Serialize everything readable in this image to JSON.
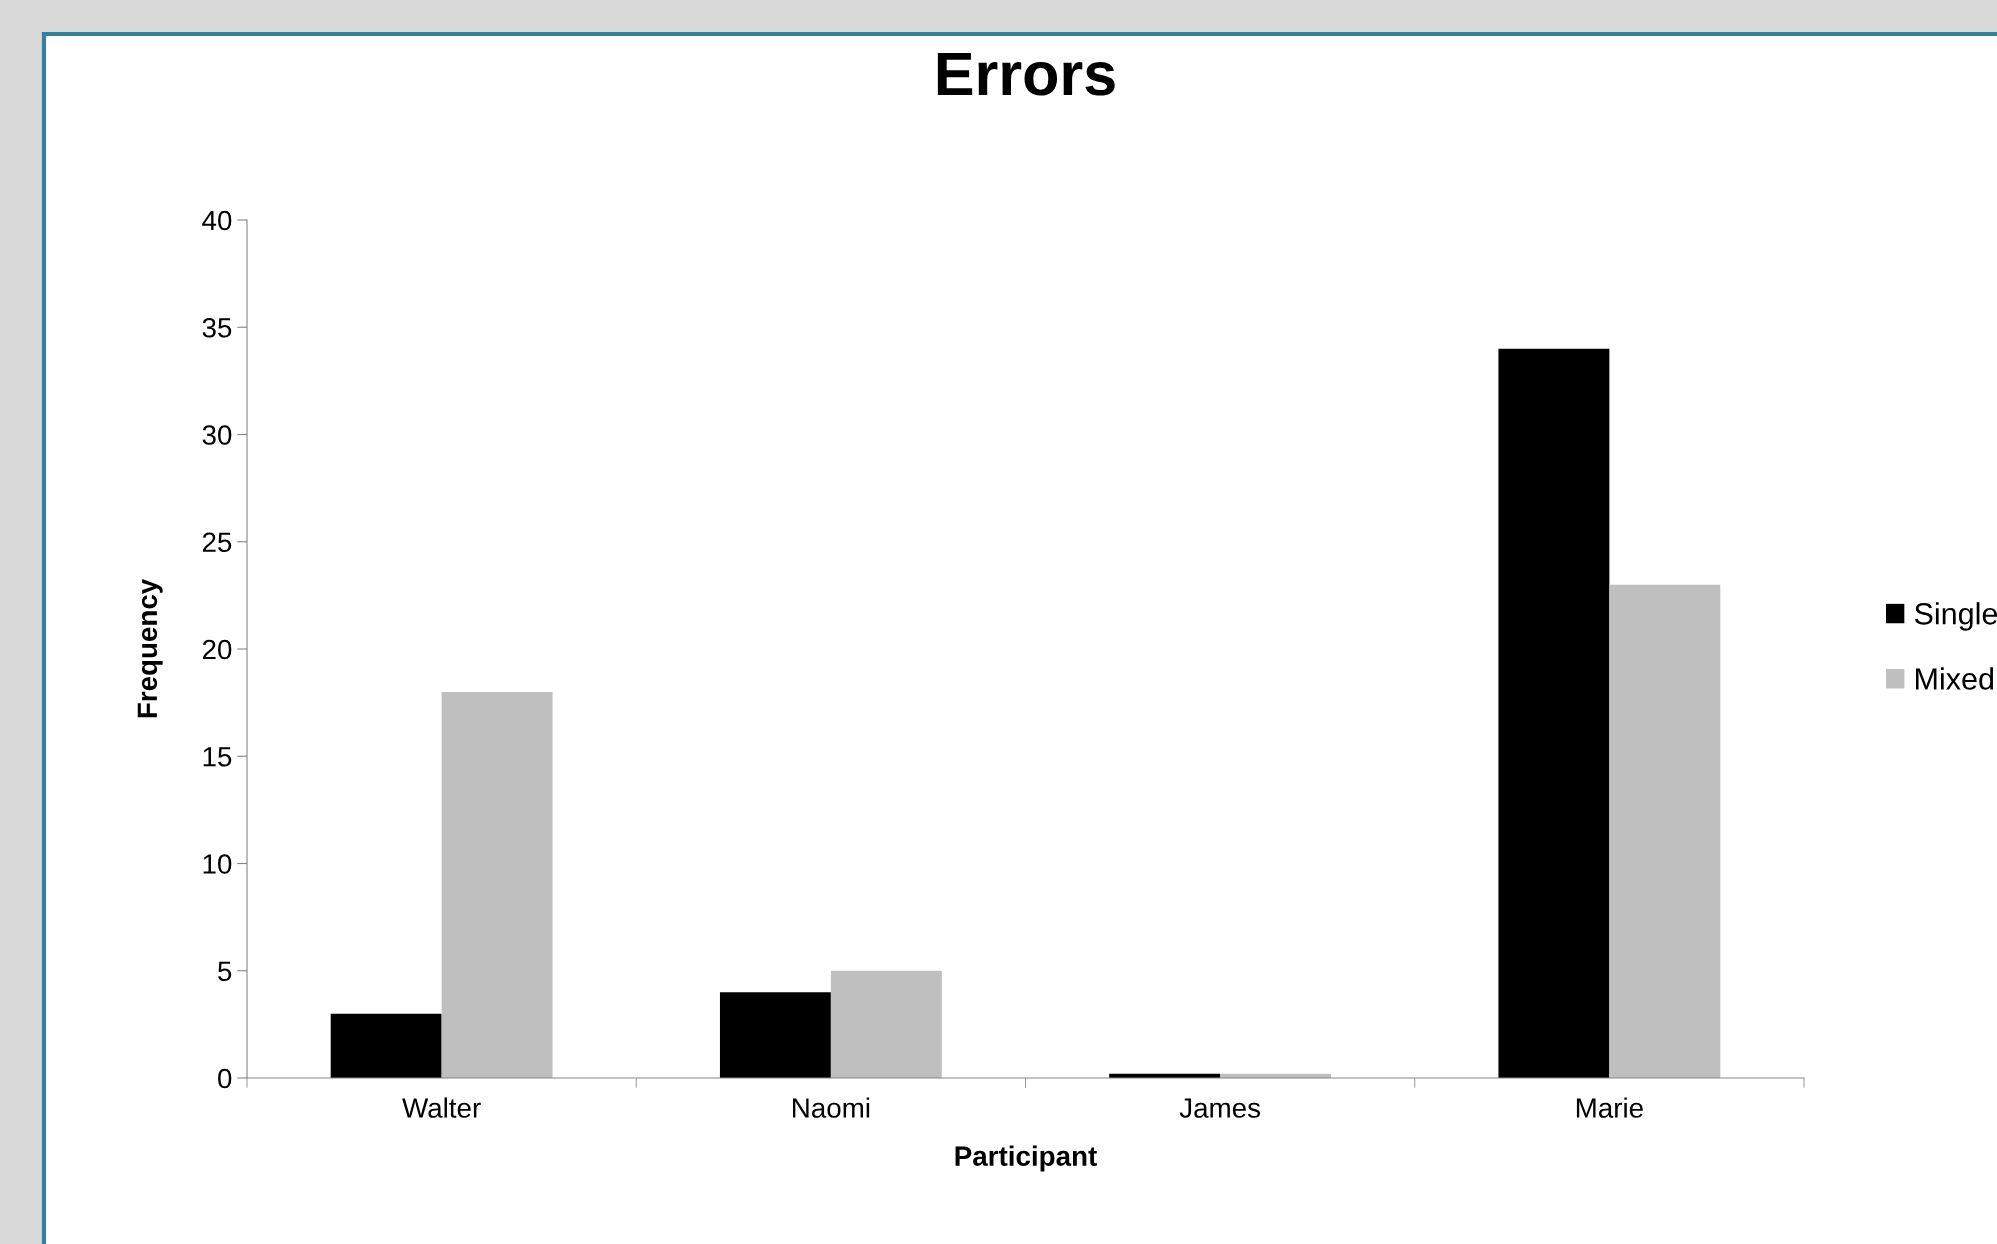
{
  "chart_data": {
    "type": "bar",
    "title": "Errors",
    "xlabel": "Participant",
    "ylabel": "Frequency",
    "categories": [
      "Walter",
      "Naomi",
      "James",
      "Marie"
    ],
    "series": [
      {
        "name": "Single",
        "color": "#000000",
        "values": [
          3,
          4,
          0.2,
          34
        ]
      },
      {
        "name": "Mixed",
        "color": "#bfbfbf",
        "values": [
          18,
          5,
          0.2,
          23
        ]
      }
    ],
    "ylim": [
      0,
      40
    ],
    "yticks": [
      0,
      5,
      10,
      15,
      20,
      25,
      30,
      35,
      40
    ],
    "grid": false,
    "legend": "right"
  }
}
